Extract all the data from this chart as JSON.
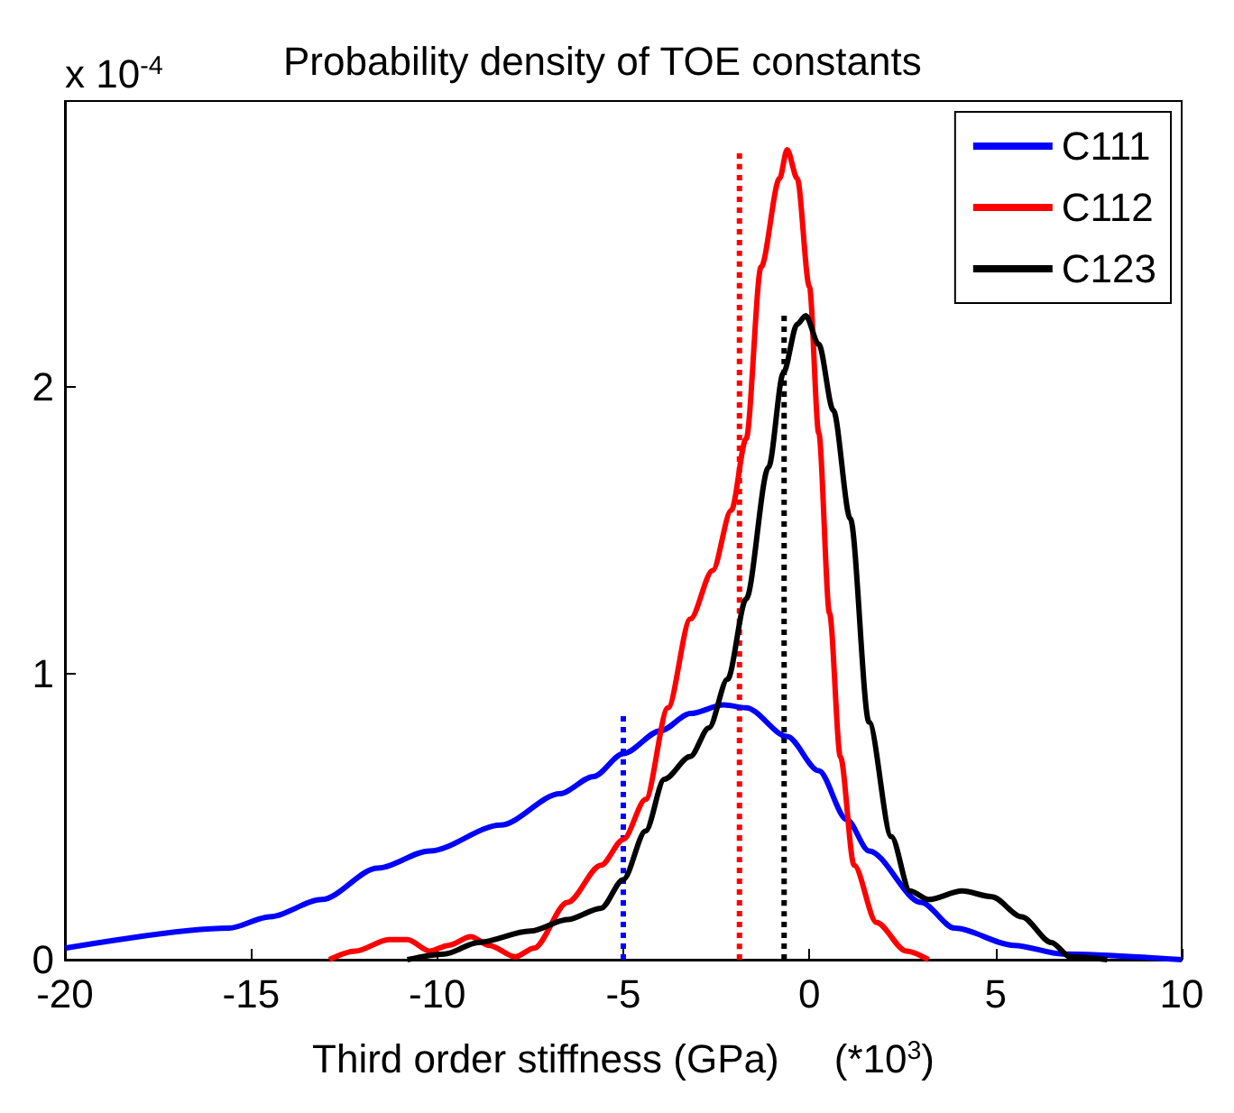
{
  "chart_data": {
    "type": "line",
    "title": "Probability density of TOE constants",
    "xlabel": "Third order stiffness (GPa)     (*10$^{3}$)",
    "annotations": [
      "x 10$^{-4}$"
    ],
    "xlim": [
      -20,
      10
    ],
    "xticks": [
      -20,
      -15,
      -10,
      -5,
      0,
      5,
      10
    ],
    "ylim": [
      0,
      3
    ],
    "yticks": [
      0,
      1,
      2
    ],
    "grid": false,
    "legend": "top right",
    "marker": "none",
    "line_style": "solid",
    "series": [
      {
        "name": "C111",
        "color": "#0000ff",
        "x": [
          -20,
          -15.6,
          -14.5,
          -13.1,
          -11.6,
          -10.2,
          -8.3,
          -6.7,
          -5.8,
          -5,
          -4,
          -3.2,
          -2.3,
          -1.7,
          -0.6,
          0.25,
          1.0,
          1.6,
          3.0,
          3.9,
          5.5,
          6.8,
          10
        ],
        "values": [
          0.04,
          0.11,
          0.15,
          0.21,
          0.32,
          0.38,
          0.47,
          0.58,
          0.64,
          0.72,
          0.8,
          0.86,
          0.89,
          0.88,
          0.78,
          0.66,
          0.49,
          0.38,
          0.2,
          0.11,
          0.05,
          0.02,
          0
        ]
      },
      {
        "name": "C112",
        "color": "#ff0000",
        "x": [
          -12.9,
          -12.2,
          -11.3,
          -10.8,
          -10.2,
          -9.7,
          -9.1,
          -8.6,
          -7.9,
          -7.4,
          -6.5,
          -5.6,
          -5.0,
          -4.4,
          -3.8,
          -3.2,
          -2.6,
          -2.1,
          -1.7,
          -1.3,
          -0.8,
          -0.6,
          -0.33,
          0,
          0.25,
          0.54,
          0.83,
          1.2,
          1.8,
          2.6,
          3.2
        ],
        "values": [
          0,
          0.03,
          0.07,
          0.07,
          0.03,
          0.05,
          0.08,
          0.05,
          0.01,
          0.04,
          0.2,
          0.33,
          0.42,
          0.56,
          0.88,
          1.19,
          1.36,
          1.57,
          1.82,
          2.42,
          2.73,
          2.83,
          2.73,
          2.35,
          1.84,
          1.21,
          0.71,
          0.33,
          0.13,
          0.03,
          0
        ]
      },
      {
        "name": "C123",
        "color": "#000000",
        "x": [
          -10.8,
          -9.8,
          -8.9,
          -7.5,
          -6.5,
          -5.6,
          -5.0,
          -4.4,
          -3.9,
          -3.2,
          -2.7,
          -2.2,
          -1.7,
          -1.1,
          -0.7,
          -0.33,
          -0.1,
          0.25,
          0.64,
          1.1,
          1.6,
          2.2,
          2.7,
          3.2,
          4.1,
          4.9,
          5.7,
          6.5,
          7.0,
          8.0
        ],
        "values": [
          0,
          0.02,
          0.06,
          0.1,
          0.14,
          0.18,
          0.28,
          0.45,
          0.63,
          0.71,
          0.81,
          0.98,
          1.26,
          1.72,
          2.05,
          2.22,
          2.25,
          2.15,
          1.92,
          1.54,
          0.83,
          0.43,
          0.24,
          0.21,
          0.24,
          0.22,
          0.15,
          0.06,
          0.01,
          0
        ]
      },
      {
        "color": "#0000ff",
        "line_style": "dotted",
        "x": [
          -5,
          -5
        ],
        "values": [
          0,
          0.87
        ]
      },
      {
        "color": "#ff0000",
        "line_style": "dotted",
        "x": [
          -1.88,
          -1.88
        ],
        "values": [
          0,
          2.82
        ]
      },
      {
        "color": "#000000",
        "line_style": "dotted",
        "x": [
          -0.68,
          -0.68
        ],
        "values": [
          0,
          2.25
        ]
      }
    ]
  }
}
